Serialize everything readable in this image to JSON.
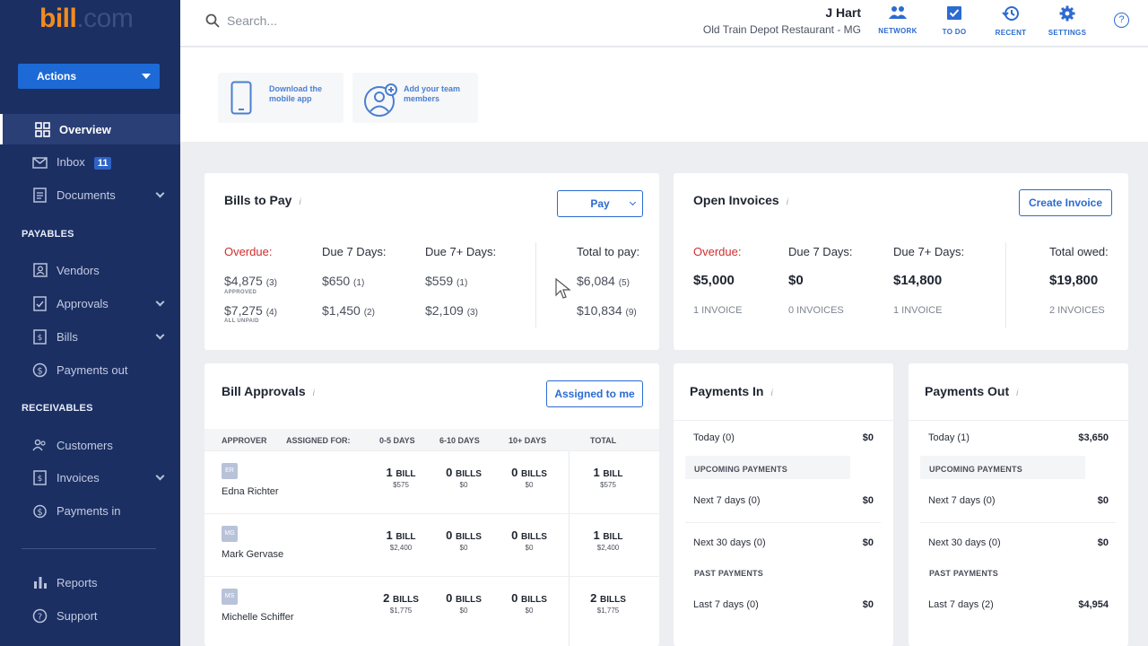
{
  "brand": {
    "logo_bill": "bill",
    "logo_com": ".com"
  },
  "sidebar": {
    "actions_label": "Actions",
    "items": [
      {
        "label": "Overview"
      },
      {
        "label": "Inbox",
        "badge": "11"
      },
      {
        "label": "Documents"
      },
      {
        "label": "Vendors"
      },
      {
        "label": "Approvals"
      },
      {
        "label": "Bills"
      },
      {
        "label": "Payments out"
      },
      {
        "label": "Customers"
      },
      {
        "label": "Invoices"
      },
      {
        "label": "Payments in"
      },
      {
        "label": "Reports"
      },
      {
        "label": "Support"
      }
    ],
    "section_payables": "PAYABLES",
    "section_receivables": "RECEIVABLES"
  },
  "topbar": {
    "search_placeholder": "Search...",
    "user_name": "J Hart",
    "company": "Old Train Depot Restaurant - MG",
    "icons": {
      "network": "NETWORK",
      "todo": "TO DO",
      "recent": "RECENT",
      "settings": "SETTINGS"
    },
    "help": "?"
  },
  "promo": {
    "mobile_app": "Download the mobile app",
    "team_members": "Add your team members"
  },
  "bills_to_pay": {
    "title": "Bills to Pay",
    "pay_button": "Pay",
    "overdue_label": "Overdue:",
    "due7_label": "Due 7 Days:",
    "due7plus_label": "Due 7+ Days:",
    "total_label": "Total to pay:",
    "overdue_approved": "$4,875",
    "overdue_approved_count": "(3)",
    "approved_caption": "APPROVED",
    "overdue_unpaid": "$7,275",
    "overdue_unpaid_count": "(4)",
    "unpaid_caption": "ALL UNPAID",
    "due7_approved": "$650",
    "due7_approved_count": "(1)",
    "due7_unpaid": "$1,450",
    "due7_unpaid_count": "(2)",
    "due7plus_approved": "$559",
    "due7plus_approved_count": "(1)",
    "due7plus_unpaid": "$2,109",
    "due7plus_unpaid_count": "(3)",
    "total_approved": "$6,084",
    "total_approved_count": "(5)",
    "total_unpaid": "$10,834",
    "total_unpaid_count": "(9)"
  },
  "open_invoices": {
    "title": "Open Invoices",
    "create_button": "Create Invoice",
    "overdue_label": "Overdue:",
    "due7_label": "Due 7 Days:",
    "due7plus_label": "Due 7+ Days:",
    "total_label": "Total owed:",
    "overdue_amount": "$5,000",
    "due7_amount": "$0",
    "due7plus_amount": "$14,800",
    "total_amount": "$19,800",
    "overdue_count": "1 INVOICE",
    "due7_count": "0 INVOICES",
    "due7plus_count": "1 INVOICE",
    "total_count": "2 INVOICES"
  },
  "bill_approvals": {
    "title": "Bill Approvals",
    "assigned_button": "Assigned to me",
    "headers": {
      "approver": "APPROVER",
      "assigned_for": "ASSIGNED FOR:",
      "d0_5": "0-5 DAYS",
      "d6_10": "6-10 DAYS",
      "d10plus": "10+ DAYS",
      "total": "TOTAL"
    },
    "rows": [
      {
        "initials": "ER",
        "name": "Edna Richter",
        "c1": "1",
        "c1u": "BILL",
        "c1m": "$575",
        "c2": "0",
        "c2u": "BILLS",
        "c2m": "$0",
        "c3": "0",
        "c3u": "BILLS",
        "c3m": "$0",
        "c4": "1",
        "c4u": "BILL",
        "c4m": "$575"
      },
      {
        "initials": "MG",
        "name": "Mark Gervase",
        "c1": "1",
        "c1u": "BILL",
        "c1m": "$2,400",
        "c2": "0",
        "c2u": "BILLS",
        "c2m": "$0",
        "c3": "0",
        "c3u": "BILLS",
        "c3m": "$0",
        "c4": "1",
        "c4u": "BILL",
        "c4m": "$2,400"
      },
      {
        "initials": "MS",
        "name": "Michelle Schiffer",
        "c1": "2",
        "c1u": "BILLS",
        "c1m": "$1,775",
        "c2": "0",
        "c2u": "BILLS",
        "c2m": "$0",
        "c3": "0",
        "c3u": "BILLS",
        "c3m": "$0",
        "c4": "2",
        "c4u": "BILLS",
        "c4m": "$1,775"
      }
    ]
  },
  "payments_in": {
    "title": "Payments In",
    "today_label": "Today (0)",
    "today_value": "$0",
    "upcoming_head": "UPCOMING PAYMENTS",
    "next7_label": "Next 7 days (0)",
    "next7_value": "$0",
    "next30_label": "Next 30 days (0)",
    "next30_value": "$0",
    "past_head": "PAST PAYMENTS",
    "last7_label": "Last 7 days (0)",
    "last7_value": "$0"
  },
  "payments_out": {
    "title": "Payments Out",
    "today_label": "Today (1)",
    "today_value": "$3,650",
    "upcoming_head": "UPCOMING PAYMENTS",
    "next7_label": "Next 7 days (0)",
    "next7_value": "$0",
    "next30_label": "Next 30 days (0)",
    "next30_value": "$0",
    "past_head": "PAST PAYMENTS",
    "last7_label": "Last 7 days (2)",
    "last7_value": "$4,954"
  },
  "colors": {
    "sidebar": "#1b2f63",
    "accent": "#2c6bd1",
    "overdue": "#d32c2c",
    "brand_orange": "#f28b1e"
  }
}
